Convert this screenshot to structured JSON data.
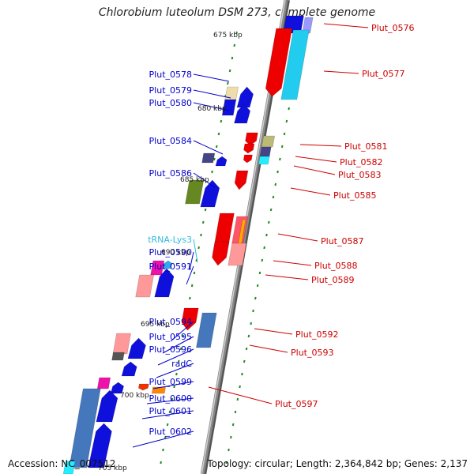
{
  "title": "Chlorobium luteolum DSM 273, complete genome",
  "accession": "Accession: NC_007512",
  "topology": "Topology: circular; Length: 2,364,842 bp; Genes: 2,137",
  "scale_labels": [
    "675 kbp",
    "680 kbp",
    "685 kbp",
    "690 kbp",
    "695 kbp",
    "700 kbp",
    "705 kbp"
  ],
  "colors": {
    "plus_strand_label": "#0000cc",
    "minus_strand_label": "#cc0000",
    "trna_label": "#33bbdd",
    "backbone": "#888888",
    "tick": "#228822"
  },
  "genes_left": [
    {
      "name": "Plut_0578"
    },
    {
      "name": "Plut_0579"
    },
    {
      "name": "Plut_0580"
    },
    {
      "name": "Plut_0584"
    },
    {
      "name": "Plut_0586"
    },
    {
      "name": "tRNA-Lys3"
    },
    {
      "name": "Plut_0590"
    },
    {
      "name": "Plut_0591"
    },
    {
      "name": "Plut_0594"
    },
    {
      "name": "Plut_0595"
    },
    {
      "name": "Plut_0596"
    },
    {
      "name": "radC"
    },
    {
      "name": "Plut_0599"
    },
    {
      "name": "Plut_0600"
    },
    {
      "name": "Plut_0601"
    },
    {
      "name": "Plut_0602"
    }
  ],
  "genes_right": [
    {
      "name": "Plut_0576"
    },
    {
      "name": "Plut_0577"
    },
    {
      "name": "Plut_0581"
    },
    {
      "name": "Plut_0582"
    },
    {
      "name": "Plut_0583"
    },
    {
      "name": "Plut_0585"
    },
    {
      "name": "Plut_0587"
    },
    {
      "name": "Plut_0588"
    },
    {
      "name": "Plut_0589"
    },
    {
      "name": "Plut_0592"
    },
    {
      "name": "Plut_0593"
    },
    {
      "name": "Plut_0597"
    }
  ]
}
